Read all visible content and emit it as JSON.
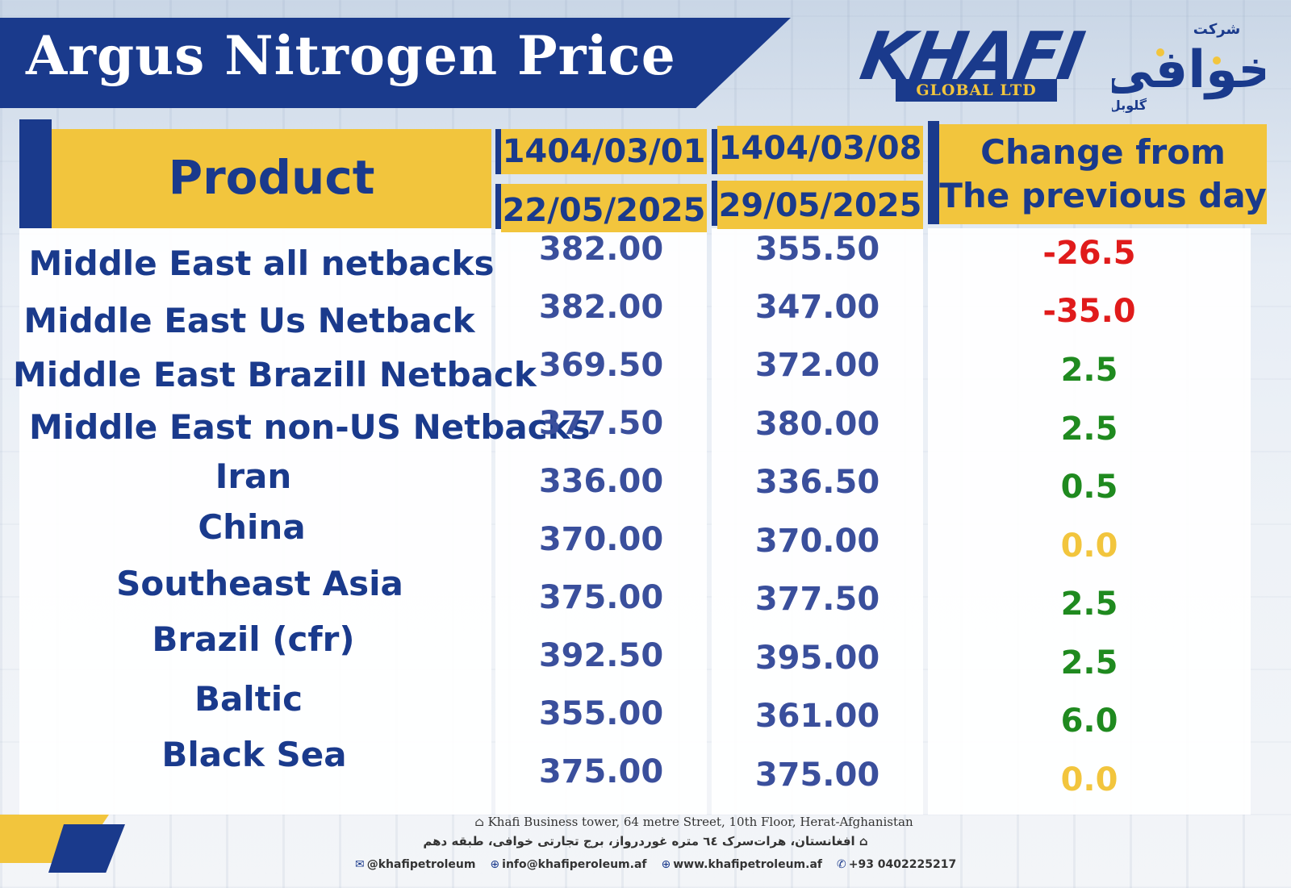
{
  "header": {
    "title": "Argus Nitrogen Price",
    "logo_main": "KHAFI",
    "logo_sub": "GLOBAL LTD",
    "logo_arabic_top": "شرکت",
    "logo_arabic_main": "خوافی",
    "logo_arabic_bottom": "گلوبل"
  },
  "table": {
    "columns": {
      "product": "Product",
      "date1_persian": "1404/03/01",
      "date1_gregorian": "22/05/2025",
      "date2_persian": "1404/03/08",
      "date2_gregorian": "29/05/2025",
      "change_line1": "Change from",
      "change_line2": "The previous day"
    },
    "rows": [
      {
        "product": "Middle East all netbacks",
        "v1": "382.00",
        "v2": "355.50",
        "change": "-26.5"
      },
      {
        "product": "Middle East Us Netback",
        "v1": "382.00",
        "v2": "347.00",
        "change": "-35.0"
      },
      {
        "product": "Middle East Brazill Netback",
        "v1": "369.50",
        "v2": "372.00",
        "change": "2.5"
      },
      {
        "product": "Middle East non-US Netbacks",
        "v1": "377.50",
        "v2": "380.00",
        "change": "2.5"
      },
      {
        "product": "Iran",
        "v1": "336.00",
        "v2": "336.50",
        "change": "0.5"
      },
      {
        "product": "China",
        "v1": "370.00",
        "v2": "370.00",
        "change": "0.0"
      },
      {
        "product": "Southeast Asia",
        "v1": "375.00",
        "v2": "377.50",
        "change": "2.5"
      },
      {
        "product": "Brazil (cfr)",
        "v1": "392.50",
        "v2": "395.00",
        "change": "2.5"
      },
      {
        "product": "Baltic",
        "v1": "355.00",
        "v2": "361.00",
        "change": "6.0"
      },
      {
        "product": "Black Sea",
        "v1": "375.00",
        "v2": "375.00",
        "change": "0.0"
      }
    ]
  },
  "colors": {
    "navy": "#1a3a8c",
    "yellow": "#f2c53d",
    "negative": "#e01b1b",
    "positive": "#1f8a1f",
    "zero": "#f2c53d"
  },
  "footer": {
    "address_en": "Khafi Business tower, 64 metre Street, 10th Floor, Herat-Afghanistan",
    "address_fa": "افغانستان، هرات‌سرک ٦٤ متره غوردرواز، برج تجارتی خوافی، طبقه دهم",
    "social": "@khafipetroleum",
    "email": "info@khafiperoleum.af",
    "website": "www.khafipetroleum.af",
    "phone": "+93 0402225217"
  }
}
